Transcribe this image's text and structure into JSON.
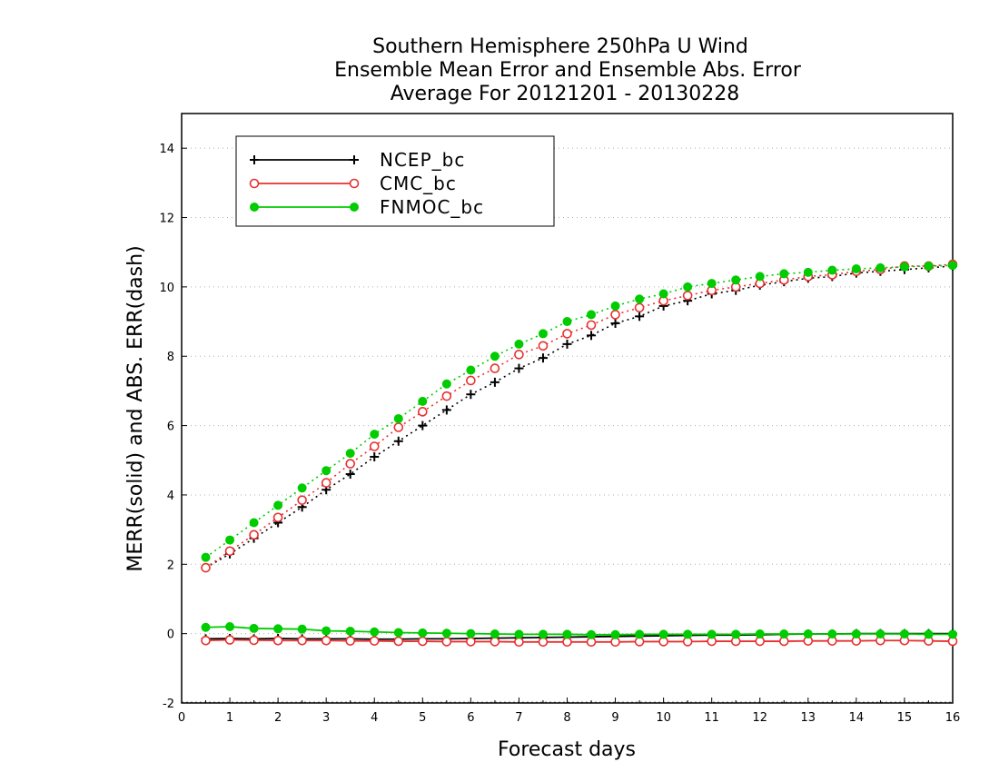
{
  "chart_data": {
    "type": "line",
    "title_lines": [
      "Southern Hemisphere 250hPa U Wind",
      "Ensemble Mean Error and Ensemble Abs. Error",
      "Average For 20121201 - 20130228"
    ],
    "xlabel": "Forecast days",
    "ylabel": "MERR(solid) and ABS. ERR(dash)",
    "xlim": [
      0,
      16
    ],
    "ylim": [
      -2,
      15
    ],
    "xticks": [
      "0",
      "1",
      "2",
      "3",
      "4",
      "5",
      "6",
      "7",
      "8",
      "9",
      "10",
      "11",
      "12",
      "13",
      "14",
      "15",
      "16"
    ],
    "yticks": [
      "-2",
      "0",
      "2",
      "4",
      "6",
      "8",
      "10",
      "12",
      "14"
    ],
    "grid": "horizontal dotted",
    "legend_position": "top-left",
    "x": [
      0.5,
      1,
      1.5,
      2,
      2.5,
      3,
      3.5,
      4,
      4.5,
      5,
      5.5,
      6,
      6.5,
      7,
      7.5,
      8,
      8.5,
      9,
      9.5,
      10,
      10.5,
      11,
      11.5,
      12,
      12.5,
      13,
      13.5,
      14,
      14.5,
      15,
      15.5,
      16
    ],
    "series": [
      {
        "name": "NCEP_bc",
        "color": "#000000",
        "marker": "plus",
        "merr": [
          -0.15,
          -0.14,
          -0.15,
          -0.14,
          -0.15,
          -0.15,
          -0.15,
          -0.16,
          -0.16,
          -0.15,
          -0.15,
          -0.14,
          -0.13,
          -0.12,
          -0.11,
          -0.1,
          -0.09,
          -0.08,
          -0.07,
          -0.06,
          -0.05,
          -0.04,
          -0.04,
          -0.03,
          -0.02,
          -0.01,
          -0.01,
          0.0,
          0.0,
          0.0,
          0.0,
          0.0
        ],
        "abs_err": [
          1.9,
          2.3,
          2.75,
          3.2,
          3.65,
          4.15,
          4.6,
          5.1,
          5.55,
          6.0,
          6.45,
          6.9,
          7.25,
          7.65,
          7.95,
          8.35,
          8.6,
          8.95,
          9.15,
          9.45,
          9.6,
          9.8,
          9.9,
          10.05,
          10.15,
          10.25,
          10.3,
          10.4,
          10.45,
          10.5,
          10.55,
          10.6
        ]
      },
      {
        "name": "CMC_bc",
        "color": "#e83030",
        "marker": "open-circle",
        "merr": [
          -0.2,
          -0.18,
          -0.19,
          -0.2,
          -0.2,
          -0.2,
          -0.21,
          -0.21,
          -0.22,
          -0.22,
          -0.23,
          -0.23,
          -0.23,
          -0.24,
          -0.24,
          -0.24,
          -0.24,
          -0.24,
          -0.23,
          -0.23,
          -0.23,
          -0.22,
          -0.22,
          -0.22,
          -0.22,
          -0.21,
          -0.21,
          -0.21,
          -0.2,
          -0.2,
          -0.21,
          -0.22
        ],
        "abs_err": [
          1.9,
          2.38,
          2.85,
          3.35,
          3.85,
          4.35,
          4.9,
          5.4,
          5.95,
          6.4,
          6.85,
          7.3,
          7.65,
          8.05,
          8.3,
          8.65,
          8.9,
          9.2,
          9.4,
          9.6,
          9.75,
          9.9,
          10.0,
          10.1,
          10.2,
          10.3,
          10.35,
          10.45,
          10.5,
          10.6,
          10.6,
          10.65
        ]
      },
      {
        "name": "FNMOC_bc",
        "color": "#00cc00",
        "marker": "filled-circle",
        "merr": [
          0.18,
          0.2,
          0.15,
          0.14,
          0.13,
          0.08,
          0.07,
          0.05,
          0.03,
          0.02,
          0.01,
          0.0,
          -0.01,
          -0.02,
          -0.02,
          -0.02,
          -0.03,
          -0.03,
          -0.02,
          -0.02,
          -0.02,
          -0.02,
          -0.02,
          -0.01,
          -0.01,
          -0.01,
          -0.01,
          -0.01,
          -0.01,
          -0.01,
          -0.02,
          -0.02
        ],
        "abs_err": [
          2.2,
          2.7,
          3.2,
          3.7,
          4.2,
          4.7,
          5.2,
          5.75,
          6.2,
          6.7,
          7.2,
          7.6,
          8.0,
          8.35,
          8.65,
          9.0,
          9.2,
          9.45,
          9.65,
          9.8,
          10.0,
          10.1,
          10.2,
          10.3,
          10.38,
          10.42,
          10.48,
          10.52,
          10.55,
          10.58,
          10.6,
          10.62
        ]
      }
    ]
  }
}
